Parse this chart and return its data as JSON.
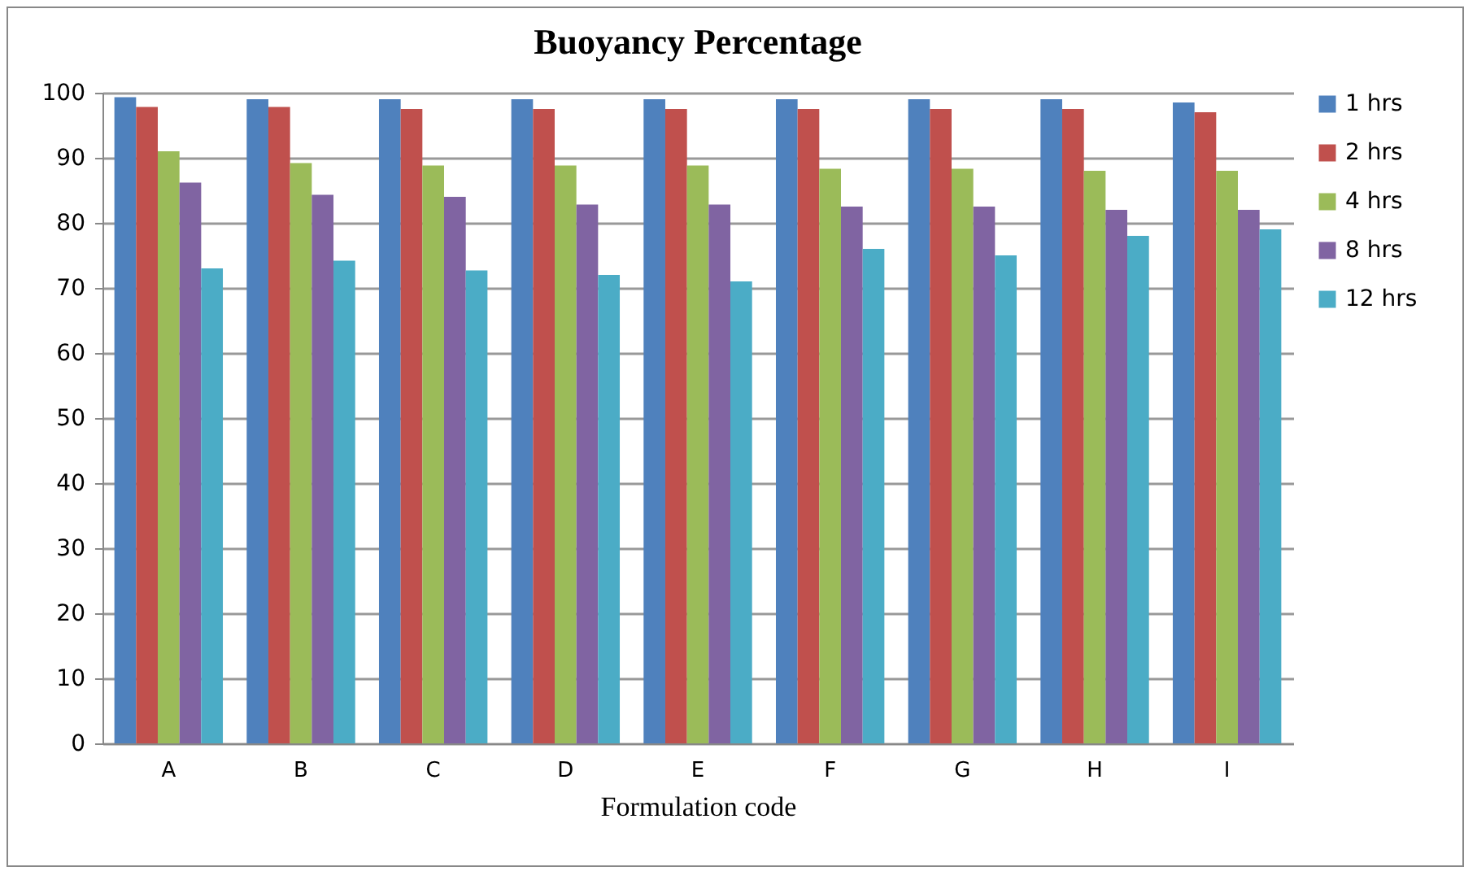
{
  "chart_data": {
    "type": "bar",
    "title": "Buoyancy Percentage",
    "xlabel": "Formulation code",
    "categories": [
      "A",
      "B",
      "C",
      "D",
      "E",
      "F",
      "G",
      "H",
      "I"
    ],
    "series": [
      {
        "name": "1 hrs",
        "color": "#4f81bd",
        "values": [
          99.3,
          99,
          99,
          99,
          99,
          99,
          99,
          99,
          98.5
        ]
      },
      {
        "name": "2 hrs",
        "color": "#c0504d",
        "values": [
          97.8,
          97.8,
          97.5,
          97.5,
          97.5,
          97.5,
          97.5,
          97.5,
          97
        ]
      },
      {
        "name": "4 hrs",
        "color": "#9bbb59",
        "values": [
          91,
          89.2,
          88.8,
          88.8,
          88.8,
          88.3,
          88.3,
          88,
          88
        ]
      },
      {
        "name": "8 hrs",
        "color": "#8064a2",
        "values": [
          86.2,
          84.3,
          84,
          82.8,
          82.8,
          82.5,
          82.5,
          82,
          82
        ]
      },
      {
        "name": "12 hrs",
        "color": "#4bacc6",
        "values": [
          73,
          74.2,
          72.7,
          72,
          71,
          76,
          75,
          78,
          79
        ]
      }
    ],
    "ylim": [
      0,
      100
    ],
    "yticks": [
      0,
      10,
      20,
      30,
      40,
      50,
      60,
      70,
      80,
      90,
      100
    ],
    "grid": "y",
    "legend": "right"
  }
}
